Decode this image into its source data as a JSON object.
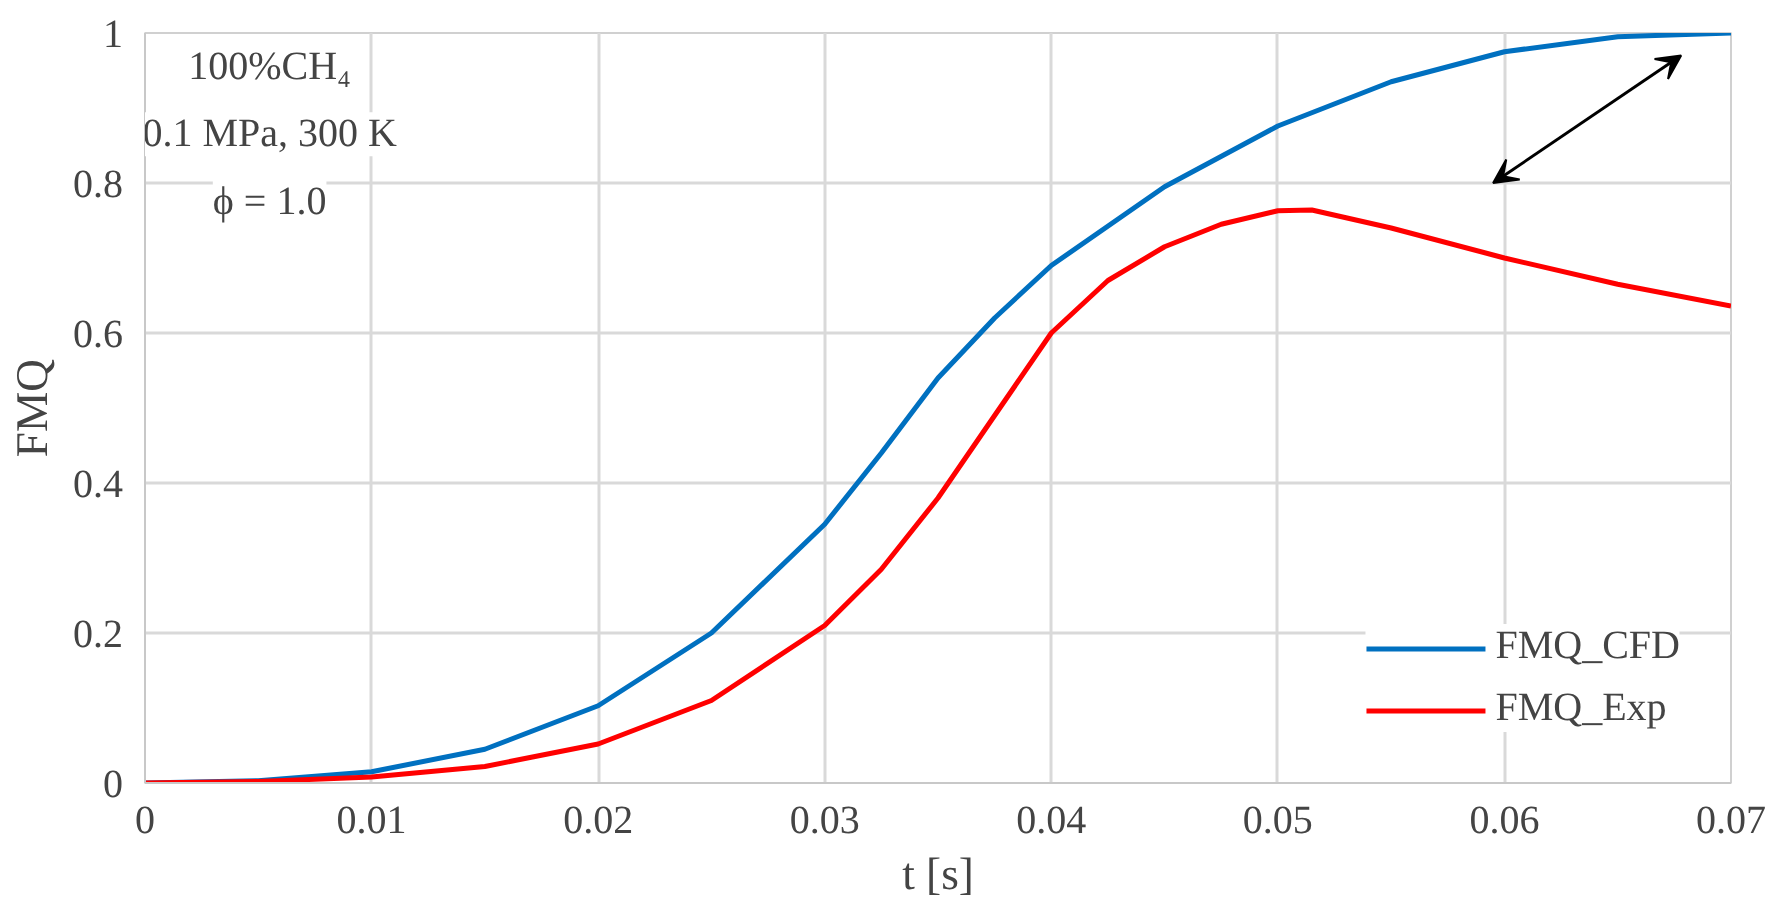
{
  "chart_data": {
    "type": "line",
    "xlabel": "t [s]",
    "ylabel": "FMQ",
    "annotations": [
      "100%CH₄",
      "0.1 MPa, 300 K",
      "ϕ = 1.0"
    ],
    "xlim": [
      0,
      0.07
    ],
    "xticks": [
      0,
      0.01,
      0.02,
      0.03,
      0.04,
      0.05,
      0.06,
      0.07
    ],
    "ylim": [
      0,
      1
    ],
    "yticks": [
      0,
      0.2,
      0.4,
      0.6,
      0.8,
      1
    ],
    "grid": true,
    "legend": "bottom right",
    "line_style": "solid",
    "marker": "none",
    "series": [
      {
        "name": "FMQ_CFD",
        "color": "#0070c0",
        "x": [
          0,
          0.005,
          0.01,
          0.015,
          0.02,
          0.025,
          0.03,
          0.0325,
          0.035,
          0.0375,
          0.04,
          0.045,
          0.05,
          0.055,
          0.06,
          0.065,
          0.07
        ],
        "values": [
          0,
          0.003,
          0.015,
          0.045,
          0.103,
          0.2,
          0.345,
          0.44,
          0.54,
          0.62,
          0.69,
          0.795,
          0.876,
          0.935,
          0.975,
          0.995,
          1.0
        ]
      },
      {
        "name": "FMQ_Exp",
        "color": "#ff0000",
        "x": [
          0,
          0.005,
          0.01,
          0.015,
          0.02,
          0.025,
          0.03,
          0.0325,
          0.035,
          0.0375,
          0.04,
          0.0425,
          0.045,
          0.0475,
          0.05,
          0.0515,
          0.055,
          0.06,
          0.065,
          0.07
        ],
        "values": [
          0,
          0.002,
          0.008,
          0.022,
          0.052,
          0.11,
          0.21,
          0.285,
          0.38,
          0.49,
          0.6,
          0.67,
          0.715,
          0.745,
          0.763,
          0.764,
          0.74,
          0.7,
          0.665,
          0.636
        ]
      }
    ]
  }
}
